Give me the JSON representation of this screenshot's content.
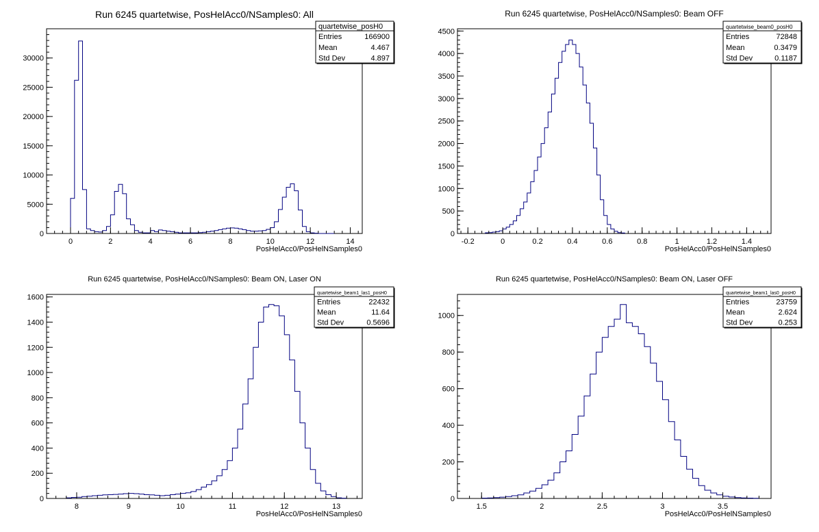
{
  "chart_data": [
    {
      "type": "bar",
      "title": "Run 6245 quartetwise, PosHelAcc0/NSamples0: All",
      "xlabel": "PosHelAcc0/PosHelNSamples0",
      "ylabel": "",
      "xlim": [
        -1.2,
        14.6
      ],
      "ylim": [
        0,
        35000
      ],
      "xticks": [
        0,
        2,
        4,
        6,
        8,
        10,
        12,
        14
      ],
      "yticks": [
        0,
        5000,
        10000,
        15000,
        20000,
        25000,
        30000
      ],
      "stats": {
        "name": "quartetwise_posH0",
        "rows": [
          {
            "label": "Entries",
            "value": "166900"
          },
          {
            "label": "Mean",
            "value": "4.467"
          },
          {
            "label": "Std Dev",
            "value": "4.897"
          }
        ]
      },
      "bins": {
        "x": [
          0,
          0.2,
          0.4,
          0.6,
          0.8,
          1,
          1.2,
          1.4,
          1.6,
          1.8,
          2,
          2.2,
          2.4,
          2.6,
          2.8,
          3,
          3.2,
          3.4,
          3.6,
          3.8,
          4,
          4.2,
          4.4,
          4.6,
          4.8,
          5,
          5.2,
          5.4,
          5.6,
          5.8,
          6,
          6.2,
          6.4,
          6.6,
          6.8,
          7,
          7.2,
          7.4,
          7.6,
          7.8,
          8,
          8.2,
          8.4,
          8.6,
          8.8,
          9,
          9.2,
          9.4,
          9.6,
          9.8,
          10,
          10.2,
          10.4,
          10.6,
          10.8,
          11,
          11.2,
          11.4,
          11.6,
          11.8,
          12,
          12.2,
          12.4,
          12.6,
          12.8,
          13
        ],
        "y": [
          6000,
          26200,
          32900,
          7500,
          800,
          500,
          300,
          250,
          500,
          1200,
          3200,
          7200,
          8400,
          6800,
          2500,
          1500,
          500,
          200,
          100,
          100,
          500,
          300,
          600,
          500,
          400,
          300,
          200,
          100,
          100,
          100,
          100,
          100,
          150,
          200,
          300,
          400,
          500,
          650,
          800,
          900,
          950,
          900,
          800,
          650,
          500,
          400,
          400,
          450,
          500,
          700,
          1000,
          2000,
          4100,
          6200,
          7900,
          8500,
          7300,
          4000,
          1200,
          300,
          100,
          50,
          0,
          0,
          0,
          0
        ]
      }
    },
    {
      "type": "bar",
      "title": "Run 6245 quartetwise, PosHelAcc0/NSamples0: Beam OFF",
      "xlabel": "PosHelAcc0/PosHelNSamples0",
      "ylabel": "",
      "xlim": [
        -0.26,
        1.54
      ],
      "ylim": [
        0,
        4550
      ],
      "xticks": [
        -0.2,
        0,
        0.2,
        0.4,
        0.6,
        0.8,
        1,
        1.2,
        1.4
      ],
      "yticks": [
        0,
        500,
        1000,
        1500,
        2000,
        2500,
        3000,
        3500,
        4000,
        4500
      ],
      "stats": {
        "name": "quartetwise_beam0_posH0",
        "rows": [
          {
            "label": "Entries",
            "value": "72848"
          },
          {
            "label": "Mean",
            "value": "0.3479"
          },
          {
            "label": "Std Dev",
            "value": "0.1187"
          }
        ]
      },
      "bins": {
        "x": [
          -0.1,
          -0.08,
          -0.06,
          -0.04,
          -0.02,
          0,
          0.02,
          0.04,
          0.06,
          0.08,
          0.1,
          0.12,
          0.14,
          0.16,
          0.18,
          0.2,
          0.22,
          0.24,
          0.26,
          0.28,
          0.3,
          0.32,
          0.34,
          0.36,
          0.38,
          0.4,
          0.42,
          0.44,
          0.46,
          0.48,
          0.5,
          0.52,
          0.54,
          0.56,
          0.58,
          0.6,
          0.62,
          0.64,
          0.66,
          0.68
        ],
        "y": [
          15,
          20,
          30,
          40,
          60,
          100,
          140,
          200,
          280,
          400,
          550,
          700,
          900,
          1150,
          1400,
          1700,
          2000,
          2350,
          2700,
          3100,
          3450,
          3800,
          4050,
          4200,
          4300,
          4200,
          4000,
          3700,
          3300,
          2900,
          2450,
          1900,
          1300,
          750,
          400,
          200,
          100,
          50,
          20,
          10
        ]
      }
    },
    {
      "type": "bar",
      "title": "Run 6245 quartetwise, PosHelAcc0/NSamples0: Beam ON, Laser ON",
      "xlabel": "PosHelAcc0/PosHelNSamples0",
      "ylabel": "",
      "xlim": [
        7.42,
        13.5
      ],
      "ylim": [
        0,
        1620
      ],
      "xticks": [
        8,
        9,
        10,
        11,
        12,
        13
      ],
      "yticks": [
        0,
        200,
        400,
        600,
        800,
        1000,
        1200,
        1400,
        1600
      ],
      "stats": {
        "name": "quartetwise_beam1_las1_posH0",
        "rows": [
          {
            "label": "Entries",
            "value": "22432"
          },
          {
            "label": "Mean",
            "value": "11.64"
          },
          {
            "label": "Std Dev",
            "value": "0.5696"
          }
        ]
      },
      "bins": {
        "x": [
          7.8,
          7.9,
          8,
          8.1,
          8.2,
          8.3,
          8.4,
          8.5,
          8.6,
          8.7,
          8.8,
          8.9,
          9,
          9.1,
          9.2,
          9.3,
          9.4,
          9.5,
          9.6,
          9.7,
          9.8,
          9.9,
          10,
          10.1,
          10.2,
          10.3,
          10.4,
          10.5,
          10.6,
          10.7,
          10.8,
          10.9,
          11,
          11.1,
          11.2,
          11.3,
          11.4,
          11.5,
          11.6,
          11.7,
          11.8,
          11.9,
          12,
          12.1,
          12.2,
          12.3,
          12.4,
          12.5,
          12.6,
          12.7,
          12.8,
          12.9,
          13,
          13.1
        ],
        "y": [
          5,
          8,
          10,
          15,
          18,
          22,
          25,
          28,
          30,
          32,
          35,
          38,
          40,
          38,
          35,
          30,
          28,
          25,
          22,
          25,
          30,
          35,
          40,
          45,
          55,
          70,
          90,
          110,
          140,
          180,
          230,
          300,
          400,
          550,
          750,
          950,
          1200,
          1400,
          1520,
          1540,
          1530,
          1450,
          1300,
          1100,
          850,
          600,
          400,
          230,
          120,
          60,
          30,
          15,
          5,
          2
        ]
      }
    },
    {
      "type": "bar",
      "title": "Run 6245 quartetwise, PosHelAcc0/NSamples0: Beam ON, Laser OFF",
      "xlabel": "PosHelAcc0/PosHelNSamples0",
      "ylabel": "",
      "xlim": [
        1.3,
        3.9
      ],
      "ylim": [
        0,
        1115
      ],
      "xticks": [
        1.5,
        2,
        2.5,
        3,
        3.5
      ],
      "yticks": [
        0,
        200,
        400,
        600,
        800,
        1000
      ],
      "stats": {
        "name": "quartetwise_beam1_las0_posH0",
        "rows": [
          {
            "label": "Entries",
            "value": "23759"
          },
          {
            "label": "Mean",
            "value": "2.624"
          },
          {
            "label": "Std Dev",
            "value": "0.253"
          }
        ]
      },
      "bins": {
        "x": [
          1.5,
          1.55,
          1.6,
          1.65,
          1.7,
          1.75,
          1.8,
          1.85,
          1.9,
          1.95,
          2,
          2.05,
          2.1,
          2.15,
          2.2,
          2.25,
          2.3,
          2.35,
          2.4,
          2.45,
          2.5,
          2.55,
          2.6,
          2.65,
          2.7,
          2.75,
          2.8,
          2.85,
          2.9,
          2.95,
          3,
          3.05,
          3.1,
          3.15,
          3.2,
          3.25,
          3.3,
          3.35,
          3.4,
          3.45,
          3.5,
          3.55,
          3.6,
          3.65,
          3.7,
          3.75
        ],
        "y": [
          2,
          3,
          5,
          7,
          10,
          15,
          20,
          30,
          40,
          55,
          75,
          100,
          140,
          200,
          260,
          350,
          450,
          560,
          680,
          800,
          880,
          940,
          980,
          1060,
          960,
          940,
          900,
          830,
          740,
          640,
          540,
          420,
          320,
          230,
          160,
          110,
          70,
          45,
          30,
          20,
          12,
          8,
          5,
          3,
          2,
          1
        ]
      }
    }
  ]
}
